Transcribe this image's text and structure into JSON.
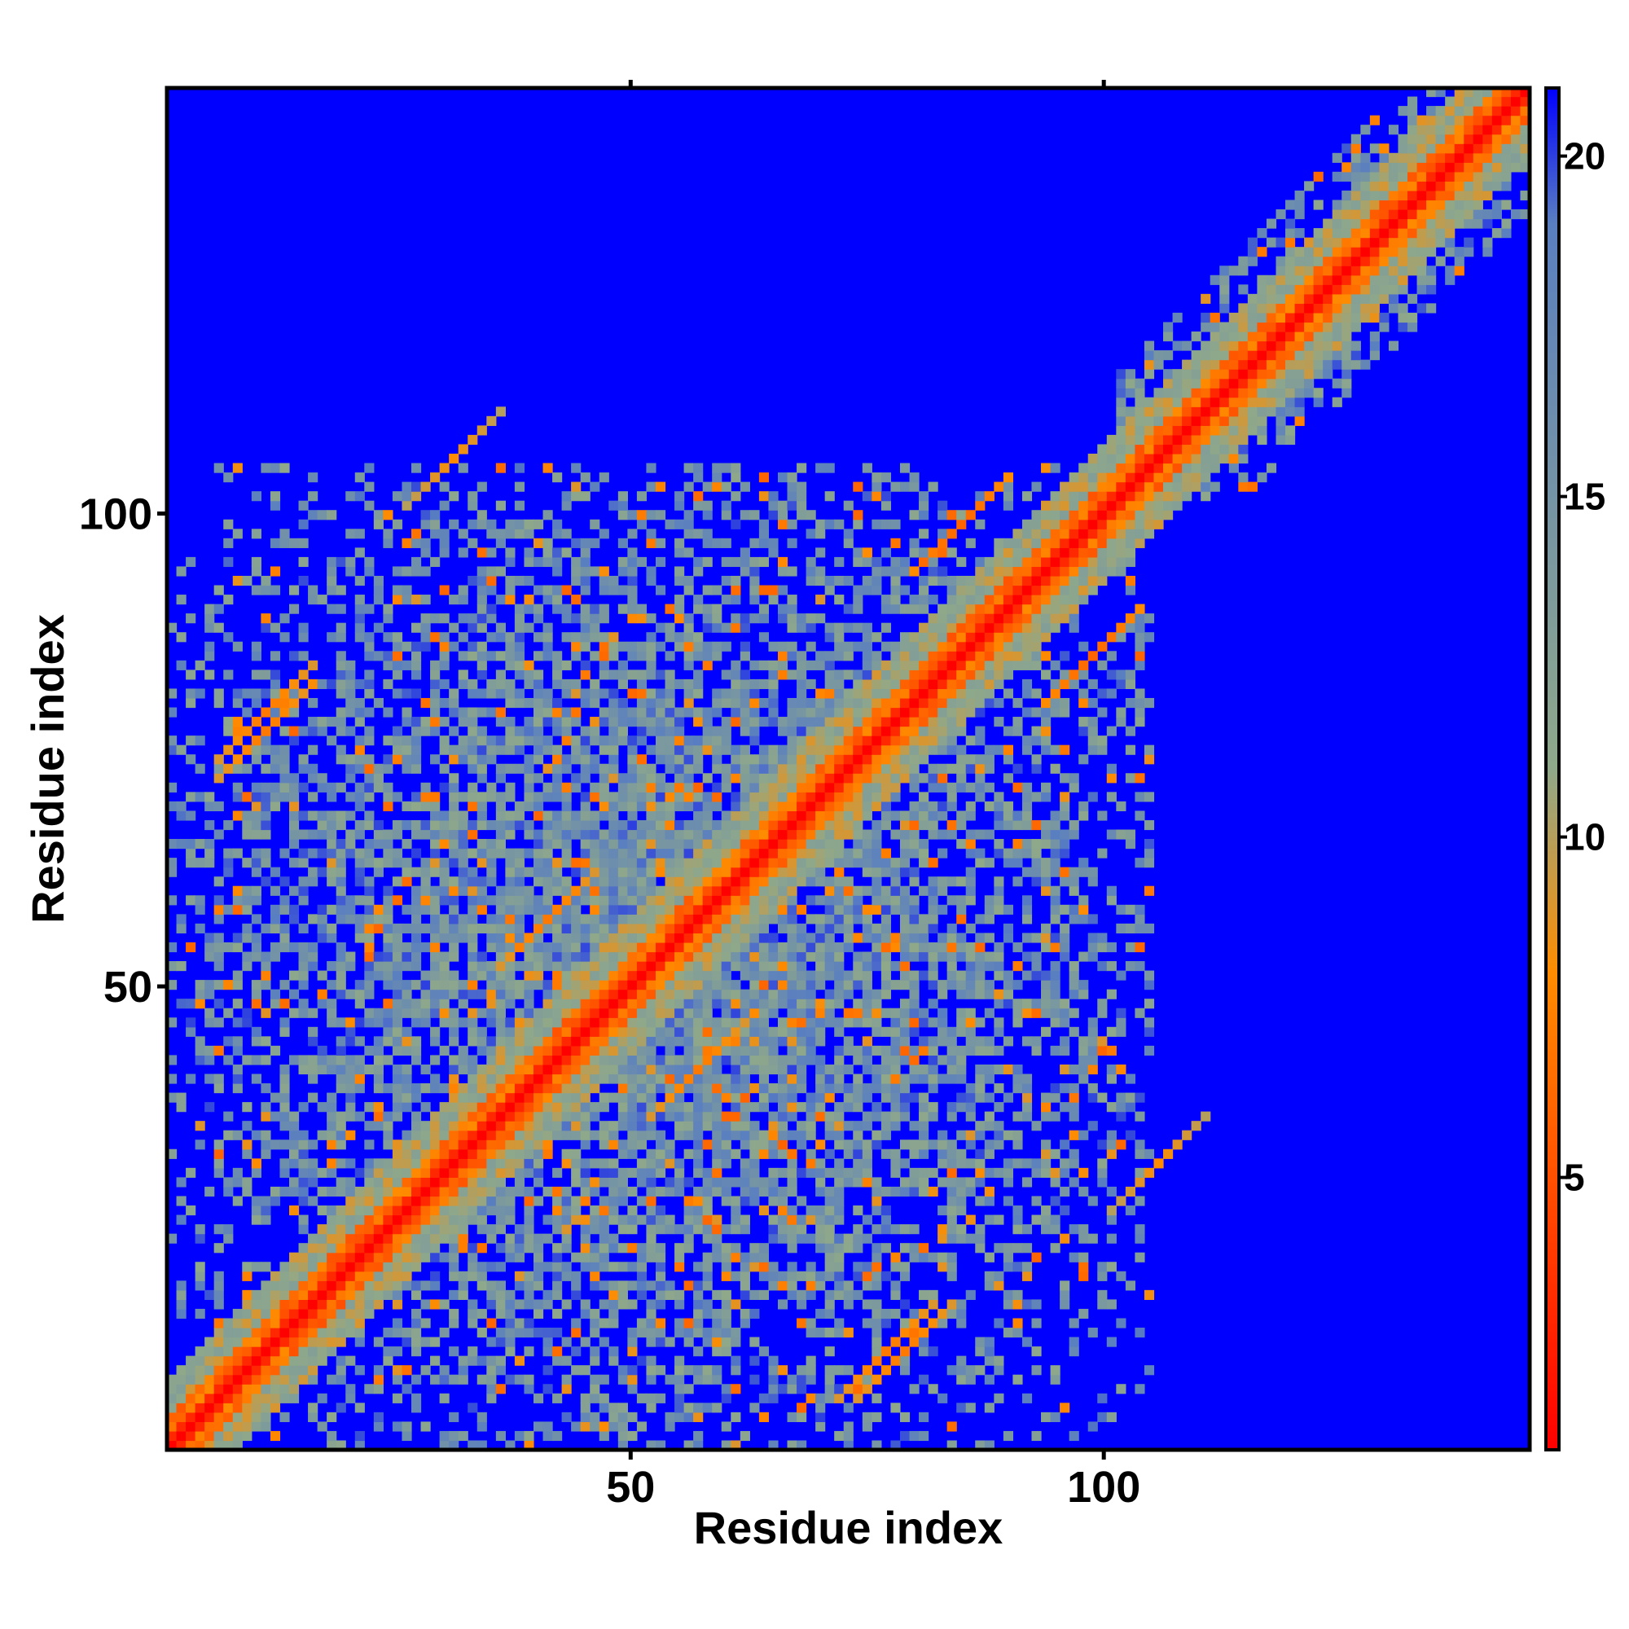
{
  "chart_data": {
    "type": "heatmap",
    "title": "",
    "xlabel": "Residue index",
    "ylabel": "Residue index",
    "n_residues": 145,
    "xlim": [
      1,
      145
    ],
    "ylim": [
      1,
      145
    ],
    "x_ticks": [
      50,
      100
    ],
    "y_ticks": [
      50,
      100
    ],
    "colorbar": {
      "ticks": [
        5,
        10,
        15,
        20
      ],
      "range": [
        1,
        21
      ],
      "colors": [
        "#ff0000",
        "#ff8c00",
        "#8fa88a",
        "#5a7fc0",
        "#0000ff"
      ],
      "stops": [
        1,
        8,
        11,
        19,
        21
      ]
    },
    "description_values": {
      "diagonal": 1,
      "near_diagonal": 7,
      "secondary_contacts": [
        {
          "i": 10,
          "j": 78,
          "value": 7
        },
        {
          "i": 40,
          "j": 56,
          "value": 7
        },
        {
          "i": 30,
          "j": 105,
          "value": 8
        },
        {
          "i": 76,
          "j": 10,
          "value": 7
        },
        {
          "i": 98,
          "j": 84,
          "value": 6
        }
      ],
      "background": 21
    }
  }
}
